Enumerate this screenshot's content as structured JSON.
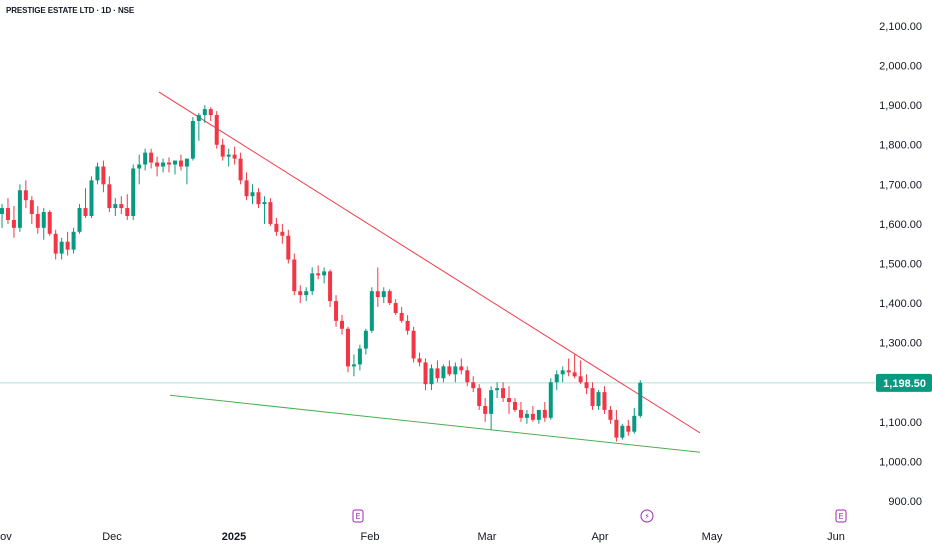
{
  "chart_data": {
    "type": "candlestick",
    "title": "PRESTIGE ESTATE LTD · 1D · NSE",
    "symbol": "PRESTIGE ESTATE LTD",
    "interval": "1D",
    "exchange": "NSE",
    "ylim": [
      880,
      2140
    ],
    "y_ticks": [
      "2,100.00",
      "2,000.00",
      "1,900.00",
      "1,800.00",
      "1,700.00",
      "1,600.00",
      "1,500.00",
      "1,400.00",
      "1,300.00",
      "1,100.00",
      "1,000.00",
      "900.00"
    ],
    "x_ticks": [
      {
        "label": "Nov",
        "bold": false
      },
      {
        "label": "Dec",
        "bold": false
      },
      {
        "label": "2025",
        "bold": true
      },
      {
        "label": "Feb",
        "bold": false
      },
      {
        "label": "Mar",
        "bold": false
      },
      {
        "label": "Apr",
        "bold": false
      },
      {
        "label": "May",
        "bold": false
      },
      {
        "label": "Jun",
        "bold": false
      }
    ],
    "current_price": "1,198.50",
    "current_price_value": 1198.5,
    "colors": {
      "up": "#089981",
      "down": "#f23645",
      "price_label": "#089981",
      "price_line": "#b2dfdb",
      "resistance": "#f23645",
      "support": "#4caf50",
      "marker": "#9c27b0"
    },
    "trendlines": [
      {
        "name": "resistance",
        "from": [
          159,
          1933
        ],
        "to": [
          700,
          1072
        ]
      },
      {
        "name": "support",
        "from": [
          170,
          1167
        ],
        "to": [
          700,
          1023
        ]
      }
    ],
    "event_markers": [
      {
        "type": "earnings",
        "glyph": "E"
      },
      {
        "type": "dividend",
        "glyph": "⚡"
      },
      {
        "type": "earnings",
        "glyph": "E"
      }
    ],
    "candles": [
      [
        1625,
        1650,
        1590,
        1640
      ],
      [
        1640,
        1665,
        1600,
        1610
      ],
      [
        1610,
        1645,
        1565,
        1590
      ],
      [
        1590,
        1700,
        1580,
        1685
      ],
      [
        1685,
        1710,
        1640,
        1660
      ],
      [
        1660,
        1670,
        1600,
        1625
      ],
      [
        1625,
        1645,
        1575,
        1590
      ],
      [
        1590,
        1640,
        1560,
        1630
      ],
      [
        1630,
        1635,
        1570,
        1575
      ],
      [
        1575,
        1585,
        1510,
        1525
      ],
      [
        1525,
        1565,
        1510,
        1555
      ],
      [
        1555,
        1580,
        1520,
        1535
      ],
      [
        1535,
        1590,
        1525,
        1580
      ],
      [
        1580,
        1650,
        1575,
        1640
      ],
      [
        1640,
        1690,
        1615,
        1620
      ],
      [
        1620,
        1720,
        1615,
        1710
      ],
      [
        1710,
        1755,
        1700,
        1745
      ],
      [
        1745,
        1760,
        1680,
        1700
      ],
      [
        1700,
        1720,
        1630,
        1640
      ],
      [
        1640,
        1665,
        1620,
        1650
      ],
      [
        1650,
        1670,
        1625,
        1640
      ],
      [
        1640,
        1675,
        1610,
        1620
      ],
      [
        1620,
        1750,
        1610,
        1740
      ],
      [
        1740,
        1775,
        1700,
        1750
      ],
      [
        1750,
        1790,
        1735,
        1780
      ],
      [
        1780,
        1790,
        1740,
        1755
      ],
      [
        1755,
        1770,
        1720,
        1745
      ],
      [
        1745,
        1765,
        1730,
        1755
      ],
      [
        1755,
        1768,
        1730,
        1750
      ],
      [
        1750,
        1760,
        1725,
        1760
      ],
      [
        1760,
        1775,
        1735,
        1745
      ],
      [
        1745,
        1760,
        1700,
        1765
      ],
      [
        1765,
        1870,
        1760,
        1860
      ],
      [
        1860,
        1880,
        1810,
        1875
      ],
      [
        1875,
        1900,
        1855,
        1890
      ],
      [
        1890,
        1895,
        1860,
        1875
      ],
      [
        1875,
        1885,
        1790,
        1800
      ],
      [
        1800,
        1815,
        1760,
        1770
      ],
      [
        1770,
        1790,
        1745,
        1775
      ],
      [
        1775,
        1795,
        1750,
        1765
      ],
      [
        1765,
        1780,
        1700,
        1710
      ],
      [
        1710,
        1730,
        1660,
        1670
      ],
      [
        1670,
        1700,
        1650,
        1680
      ],
      [
        1680,
        1690,
        1640,
        1650
      ],
      [
        1650,
        1670,
        1600,
        1655
      ],
      [
        1655,
        1665,
        1595,
        1600
      ],
      [
        1600,
        1615,
        1570,
        1580
      ],
      [
        1580,
        1600,
        1550,
        1570
      ],
      [
        1570,
        1585,
        1500,
        1510
      ],
      [
        1510,
        1525,
        1420,
        1430
      ],
      [
        1430,
        1445,
        1400,
        1420
      ],
      [
        1420,
        1440,
        1405,
        1430
      ],
      [
        1430,
        1490,
        1420,
        1475
      ],
      [
        1475,
        1495,
        1460,
        1470
      ],
      [
        1470,
        1490,
        1450,
        1480
      ],
      [
        1480,
        1485,
        1390,
        1405
      ],
      [
        1405,
        1420,
        1340,
        1355
      ],
      [
        1355,
        1370,
        1320,
        1335
      ],
      [
        1335,
        1340,
        1225,
        1240
      ],
      [
        1240,
        1270,
        1215,
        1245
      ],
      [
        1245,
        1295,
        1230,
        1285
      ],
      [
        1285,
        1335,
        1270,
        1330
      ],
      [
        1330,
        1440,
        1325,
        1430
      ],
      [
        1430,
        1490,
        1390,
        1415
      ],
      [
        1415,
        1440,
        1400,
        1430
      ],
      [
        1430,
        1435,
        1395,
        1400
      ],
      [
        1400,
        1410,
        1370,
        1375
      ],
      [
        1375,
        1390,
        1350,
        1355
      ],
      [
        1355,
        1370,
        1320,
        1330
      ],
      [
        1330,
        1340,
        1250,
        1260
      ],
      [
        1260,
        1275,
        1240,
        1250
      ],
      [
        1250,
        1260,
        1180,
        1195
      ],
      [
        1195,
        1245,
        1180,
        1235
      ],
      [
        1235,
        1255,
        1200,
        1210
      ],
      [
        1210,
        1245,
        1200,
        1240
      ],
      [
        1240,
        1255,
        1215,
        1220
      ],
      [
        1220,
        1250,
        1200,
        1240
      ],
      [
        1240,
        1260,
        1220,
        1230
      ],
      [
        1230,
        1240,
        1190,
        1200
      ],
      [
        1200,
        1215,
        1175,
        1185
      ],
      [
        1185,
        1195,
        1130,
        1140
      ],
      [
        1140,
        1160,
        1100,
        1120
      ],
      [
        1120,
        1190,
        1080,
        1180
      ],
      [
        1180,
        1200,
        1160,
        1185
      ],
      [
        1185,
        1200,
        1150,
        1160
      ],
      [
        1160,
        1190,
        1120,
        1150
      ],
      [
        1150,
        1160,
        1125,
        1130
      ],
      [
        1130,
        1150,
        1100,
        1110
      ],
      [
        1110,
        1130,
        1095,
        1120
      ],
      [
        1120,
        1140,
        1100,
        1105
      ],
      [
        1105,
        1130,
        1095,
        1130
      ],
      [
        1130,
        1150,
        1100,
        1110
      ],
      [
        1110,
        1210,
        1105,
        1200
      ],
      [
        1200,
        1230,
        1180,
        1220
      ],
      [
        1220,
        1240,
        1200,
        1230
      ],
      [
        1230,
        1260,
        1215,
        1225
      ],
      [
        1225,
        1270,
        1210,
        1215
      ],
      [
        1215,
        1255,
        1195,
        1200
      ],
      [
        1200,
        1220,
        1170,
        1185
      ],
      [
        1185,
        1200,
        1130,
        1140
      ],
      [
        1140,
        1180,
        1130,
        1175
      ],
      [
        1175,
        1190,
        1120,
        1130
      ],
      [
        1130,
        1140,
        1095,
        1105
      ],
      [
        1105,
        1130,
        1050,
        1060
      ],
      [
        1060,
        1095,
        1055,
        1090
      ],
      [
        1090,
        1105,
        1065,
        1075
      ],
      [
        1075,
        1135,
        1070,
        1115
      ],
      [
        1115,
        1205,
        1110,
        1198.5
      ]
    ]
  }
}
